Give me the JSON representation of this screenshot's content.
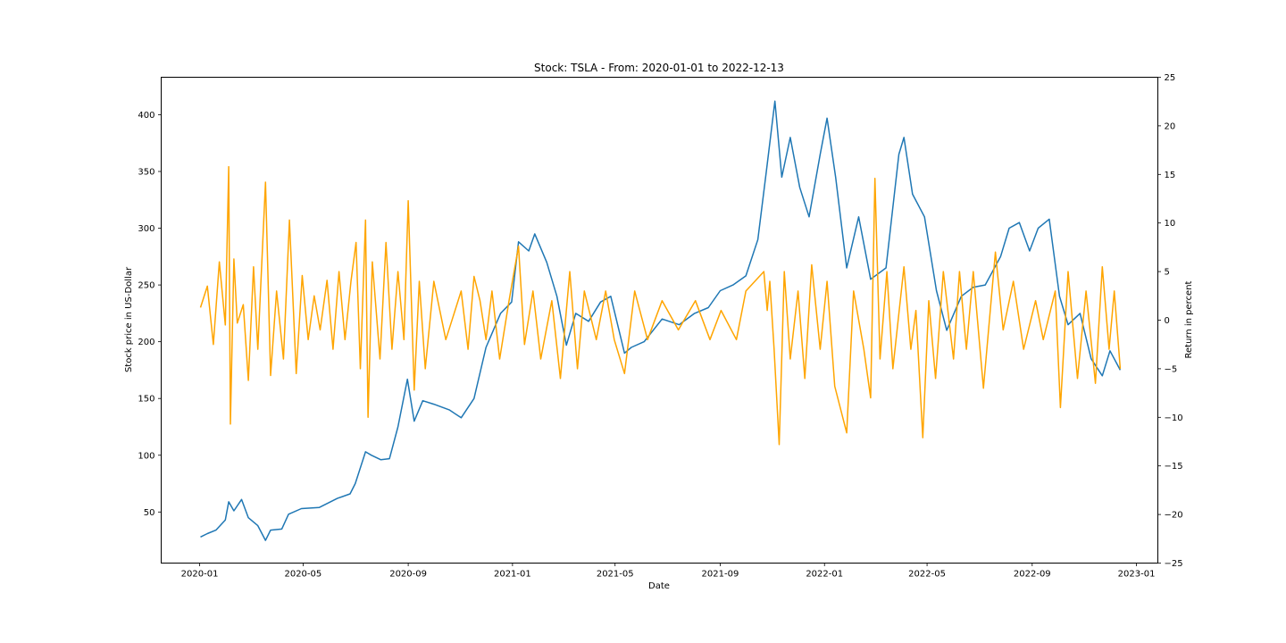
{
  "chart_data": {
    "type": "line",
    "title": "Stock: TSLA - From: 2020-01-01 to 2022-12-13",
    "xlabel": "Date",
    "ylabel_left": "Stock price in US-Dollar",
    "ylabel_right": "Return in percent",
    "xlim": [
      "2019-11-17",
      "2023-01-26"
    ],
    "ylim_left": [
      5,
      433
    ],
    "ylim_right": [
      -25,
      25
    ],
    "x_ticks": [
      "2020-01",
      "2020-05",
      "2020-09",
      "2021-01",
      "2021-05",
      "2021-09",
      "2022-01",
      "2022-05",
      "2022-09",
      "2023-01"
    ],
    "y_ticks_left": [
      50,
      100,
      150,
      200,
      250,
      300,
      350,
      400
    ],
    "y_ticks_right": [
      -25,
      -20,
      -15,
      -10,
      -5,
      0,
      5,
      10,
      15,
      20,
      25
    ],
    "grid": false,
    "series": [
      {
        "axis": "left",
        "color": "#1f77b4",
        "points": [
          [
            "2020-01-02",
            28
          ],
          [
            "2020-01-10",
            31
          ],
          [
            "2020-01-20",
            34
          ],
          [
            "2020-01-31",
            43
          ],
          [
            "2020-02-04",
            59
          ],
          [
            "2020-02-10",
            51
          ],
          [
            "2020-02-19",
            61
          ],
          [
            "2020-02-27",
            45
          ],
          [
            "2020-03-09",
            38
          ],
          [
            "2020-03-18",
            25
          ],
          [
            "2020-03-24",
            34
          ],
          [
            "2020-04-06",
            35
          ],
          [
            "2020-04-14",
            48
          ],
          [
            "2020-04-29",
            53
          ],
          [
            "2020-05-20",
            54
          ],
          [
            "2020-06-10",
            62
          ],
          [
            "2020-06-25",
            66
          ],
          [
            "2020-07-01",
            75
          ],
          [
            "2020-07-13",
            103
          ],
          [
            "2020-07-20",
            100
          ],
          [
            "2020-07-31",
            96
          ],
          [
            "2020-08-10",
            97
          ],
          [
            "2020-08-20",
            125
          ],
          [
            "2020-08-31",
            167
          ],
          [
            "2020-09-08",
            130
          ],
          [
            "2020-09-18",
            148
          ],
          [
            "2020-10-01",
            145
          ],
          [
            "2020-10-19",
            140
          ],
          [
            "2020-11-02",
            133
          ],
          [
            "2020-11-17",
            150
          ],
          [
            "2020-12-01",
            195
          ],
          [
            "2020-12-18",
            225
          ],
          [
            "2020-12-31",
            235
          ],
          [
            "2021-01-08",
            288
          ],
          [
            "2021-01-20",
            280
          ],
          [
            "2021-01-27",
            295
          ],
          [
            "2021-02-10",
            270
          ],
          [
            "2021-02-22",
            240
          ],
          [
            "2021-03-05",
            197
          ],
          [
            "2021-03-16",
            225
          ],
          [
            "2021-03-31",
            218
          ],
          [
            "2021-04-14",
            235
          ],
          [
            "2021-04-26",
            240
          ],
          [
            "2021-05-12",
            190
          ],
          [
            "2021-05-20",
            195
          ],
          [
            "2021-06-04",
            200
          ],
          [
            "2021-06-25",
            220
          ],
          [
            "2021-07-15",
            215
          ],
          [
            "2021-08-02",
            225
          ],
          [
            "2021-08-18",
            230
          ],
          [
            "2021-09-01",
            245
          ],
          [
            "2021-09-16",
            250
          ],
          [
            "2021-10-01",
            258
          ],
          [
            "2021-10-15",
            290
          ],
          [
            "2021-10-25",
            350
          ],
          [
            "2021-11-04",
            412
          ],
          [
            "2021-11-12",
            345
          ],
          [
            "2021-11-22",
            380
          ],
          [
            "2021-12-03",
            336
          ],
          [
            "2021-12-14",
            310
          ],
          [
            "2021-12-27",
            365
          ],
          [
            "2022-01-04",
            397
          ],
          [
            "2022-01-14",
            345
          ],
          [
            "2022-01-27",
            265
          ],
          [
            "2022-02-10",
            310
          ],
          [
            "2022-02-24",
            255
          ],
          [
            "2022-03-14",
            265
          ],
          [
            "2022-03-29",
            365
          ],
          [
            "2022-04-04",
            380
          ],
          [
            "2022-04-14",
            330
          ],
          [
            "2022-04-28",
            310
          ],
          [
            "2022-05-12",
            245
          ],
          [
            "2022-05-24",
            210
          ],
          [
            "2022-06-10",
            240
          ],
          [
            "2022-06-24",
            248
          ],
          [
            "2022-07-08",
            250
          ],
          [
            "2022-07-26",
            275
          ],
          [
            "2022-08-05",
            300
          ],
          [
            "2022-08-17",
            305
          ],
          [
            "2022-08-29",
            280
          ],
          [
            "2022-09-08",
            300
          ],
          [
            "2022-09-21",
            308
          ],
          [
            "2022-10-03",
            240
          ],
          [
            "2022-10-13",
            215
          ],
          [
            "2022-10-27",
            225
          ],
          [
            "2022-11-09",
            185
          ],
          [
            "2022-11-22",
            170
          ],
          [
            "2022-12-01",
            192
          ],
          [
            "2022-12-13",
            175
          ]
        ]
      },
      {
        "axis": "right",
        "color": "#ffa500",
        "points": [
          [
            "2020-01-02",
            1.3
          ],
          [
            "2020-01-10",
            3.5
          ],
          [
            "2020-01-17",
            -2.5
          ],
          [
            "2020-01-24",
            6
          ],
          [
            "2020-01-31",
            -0.5
          ],
          [
            "2020-02-04",
            15.8
          ],
          [
            "2020-02-06",
            -10.7
          ],
          [
            "2020-02-10",
            6.3
          ],
          [
            "2020-02-14",
            -0.3
          ],
          [
            "2020-02-21",
            1.6
          ],
          [
            "2020-02-27",
            -6.2
          ],
          [
            "2020-03-04",
            5.5
          ],
          [
            "2020-03-09",
            -3
          ],
          [
            "2020-03-18",
            14.2
          ],
          [
            "2020-03-24",
            -5.7
          ],
          [
            "2020-03-31",
            3
          ],
          [
            "2020-04-08",
            -4
          ],
          [
            "2020-04-15",
            10.3
          ],
          [
            "2020-04-23",
            -5.5
          ],
          [
            "2020-04-30",
            4.6
          ],
          [
            "2020-05-07",
            -2
          ],
          [
            "2020-05-14",
            2.5
          ],
          [
            "2020-05-21",
            -1
          ],
          [
            "2020-05-29",
            4.1
          ],
          [
            "2020-06-05",
            -3
          ],
          [
            "2020-06-12",
            5
          ],
          [
            "2020-06-19",
            -2
          ],
          [
            "2020-06-26",
            4
          ],
          [
            "2020-07-02",
            8
          ],
          [
            "2020-07-07",
            -5
          ],
          [
            "2020-07-13",
            10.3
          ],
          [
            "2020-07-16",
            -10
          ],
          [
            "2020-07-21",
            6
          ],
          [
            "2020-07-30",
            -4
          ],
          [
            "2020-08-06",
            8
          ],
          [
            "2020-08-13",
            -3
          ],
          [
            "2020-08-20",
            5
          ],
          [
            "2020-08-27",
            -2
          ],
          [
            "2020-09-01",
            12.3
          ],
          [
            "2020-09-08",
            -7.2
          ],
          [
            "2020-09-14",
            4
          ],
          [
            "2020-09-21",
            -5
          ],
          [
            "2020-10-01",
            4
          ],
          [
            "2020-10-15",
            -2
          ],
          [
            "2020-11-02",
            3
          ],
          [
            "2020-11-10",
            -3
          ],
          [
            "2020-11-17",
            4.5
          ],
          [
            "2020-11-24",
            2
          ],
          [
            "2020-12-01",
            -2
          ],
          [
            "2020-12-08",
            3
          ],
          [
            "2020-12-17",
            -4
          ],
          [
            "2020-12-28",
            2
          ],
          [
            "2021-01-08",
            7.6
          ],
          [
            "2021-01-15",
            -2.5
          ],
          [
            "2021-01-25",
            3
          ],
          [
            "2021-02-03",
            -4
          ],
          [
            "2021-02-16",
            2
          ],
          [
            "2021-02-26",
            -6
          ],
          [
            "2021-03-09",
            5
          ],
          [
            "2021-03-18",
            -5
          ],
          [
            "2021-03-26",
            3
          ],
          [
            "2021-04-09",
            -2
          ],
          [
            "2021-04-20",
            3
          ],
          [
            "2021-04-30",
            -2
          ],
          [
            "2021-05-12",
            -5.5
          ],
          [
            "2021-05-24",
            3
          ],
          [
            "2021-06-08",
            -2
          ],
          [
            "2021-06-25",
            2
          ],
          [
            "2021-07-14",
            -1
          ],
          [
            "2021-08-03",
            2
          ],
          [
            "2021-08-20",
            -2
          ],
          [
            "2021-09-02",
            1
          ],
          [
            "2021-09-20",
            -2
          ],
          [
            "2021-10-01",
            3
          ],
          [
            "2021-10-22",
            5
          ],
          [
            "2021-10-26",
            1
          ],
          [
            "2021-10-29",
            4
          ],
          [
            "2021-11-03",
            -3
          ],
          [
            "2021-11-09",
            -12.8
          ],
          [
            "2021-11-15",
            5
          ],
          [
            "2021-11-22",
            -4
          ],
          [
            "2021-12-01",
            3
          ],
          [
            "2021-12-09",
            -6
          ],
          [
            "2021-12-17",
            5.7
          ],
          [
            "2021-12-27",
            -3
          ],
          [
            "2022-01-04",
            4
          ],
          [
            "2022-01-13",
            -6.8
          ],
          [
            "2022-01-27",
            -11.6
          ],
          [
            "2022-02-04",
            3
          ],
          [
            "2022-02-16",
            -3
          ],
          [
            "2022-02-24",
            -8
          ],
          [
            "2022-03-01",
            14.6
          ],
          [
            "2022-03-07",
            -4
          ],
          [
            "2022-03-15",
            5
          ],
          [
            "2022-03-22",
            -5
          ],
          [
            "2022-04-04",
            5.5
          ],
          [
            "2022-04-12",
            -3
          ],
          [
            "2022-04-18",
            1
          ],
          [
            "2022-04-26",
            -12.1
          ],
          [
            "2022-05-03",
            2
          ],
          [
            "2022-05-11",
            -6
          ],
          [
            "2022-05-20",
            5
          ],
          [
            "2022-06-01",
            -4
          ],
          [
            "2022-06-08",
            5
          ],
          [
            "2022-06-16",
            -3
          ],
          [
            "2022-06-24",
            5
          ],
          [
            "2022-07-06",
            -7
          ],
          [
            "2022-07-20",
            7
          ],
          [
            "2022-07-29",
            -1
          ],
          [
            "2022-08-10",
            4
          ],
          [
            "2022-08-22",
            -3
          ],
          [
            "2022-09-05",
            2
          ],
          [
            "2022-09-14",
            -2
          ],
          [
            "2022-09-28",
            3
          ],
          [
            "2022-10-04",
            -9
          ],
          [
            "2022-10-13",
            5
          ],
          [
            "2022-10-24",
            -6
          ],
          [
            "2022-11-03",
            3
          ],
          [
            "2022-11-14",
            -6.5
          ],
          [
            "2022-11-22",
            5.5
          ],
          [
            "2022-11-30",
            -3
          ],
          [
            "2022-12-06",
            3
          ],
          [
            "2022-12-13",
            -5
          ]
        ]
      }
    ]
  }
}
